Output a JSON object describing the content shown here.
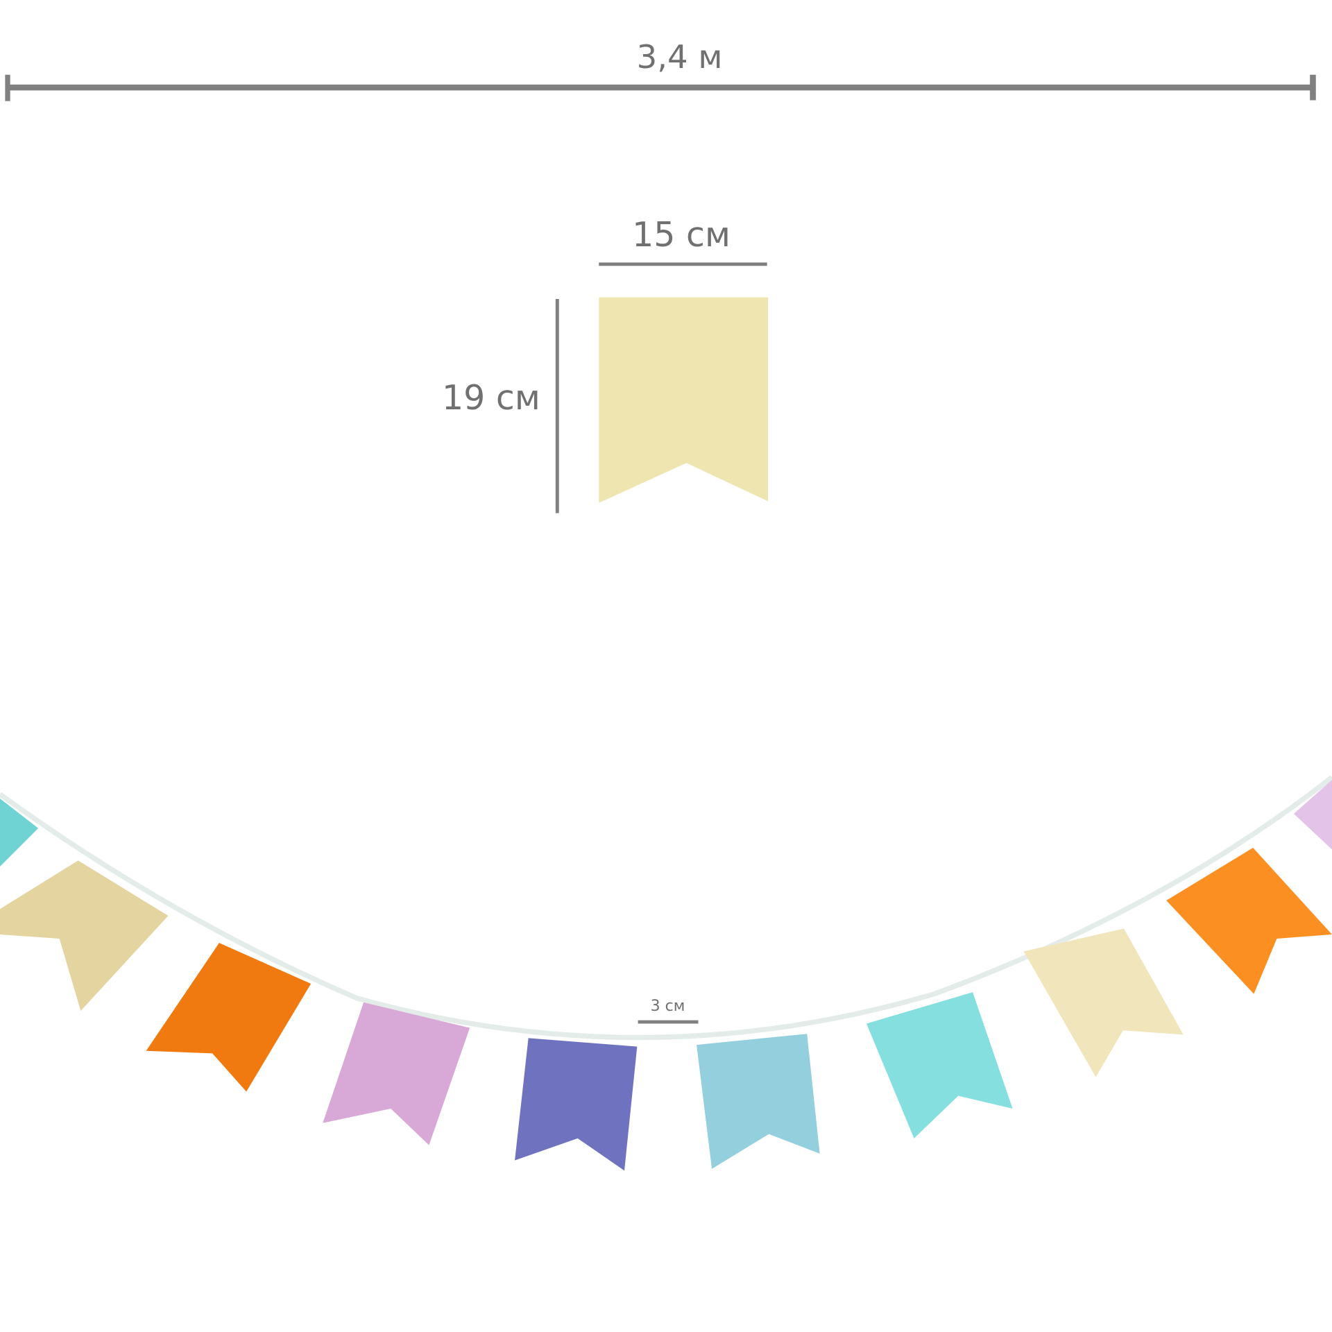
{
  "dimensions": {
    "total_length": "3,4 м",
    "flag_width": "15 см",
    "flag_height": "19 см",
    "flag_spacing": "3 см"
  },
  "colors": {
    "dimension_line": "#808080",
    "sample_flag": "#efe5b0",
    "string": "#e4ecea",
    "flags": [
      "#6fd3d3",
      "#e3d4a0",
      "#f07a10",
      "#d8a8d6",
      "#6f72bf",
      "#93cfdc",
      "#86dfdf",
      "#f1e6bb",
      "#fb8f22",
      "#e3c3e8"
    ]
  }
}
